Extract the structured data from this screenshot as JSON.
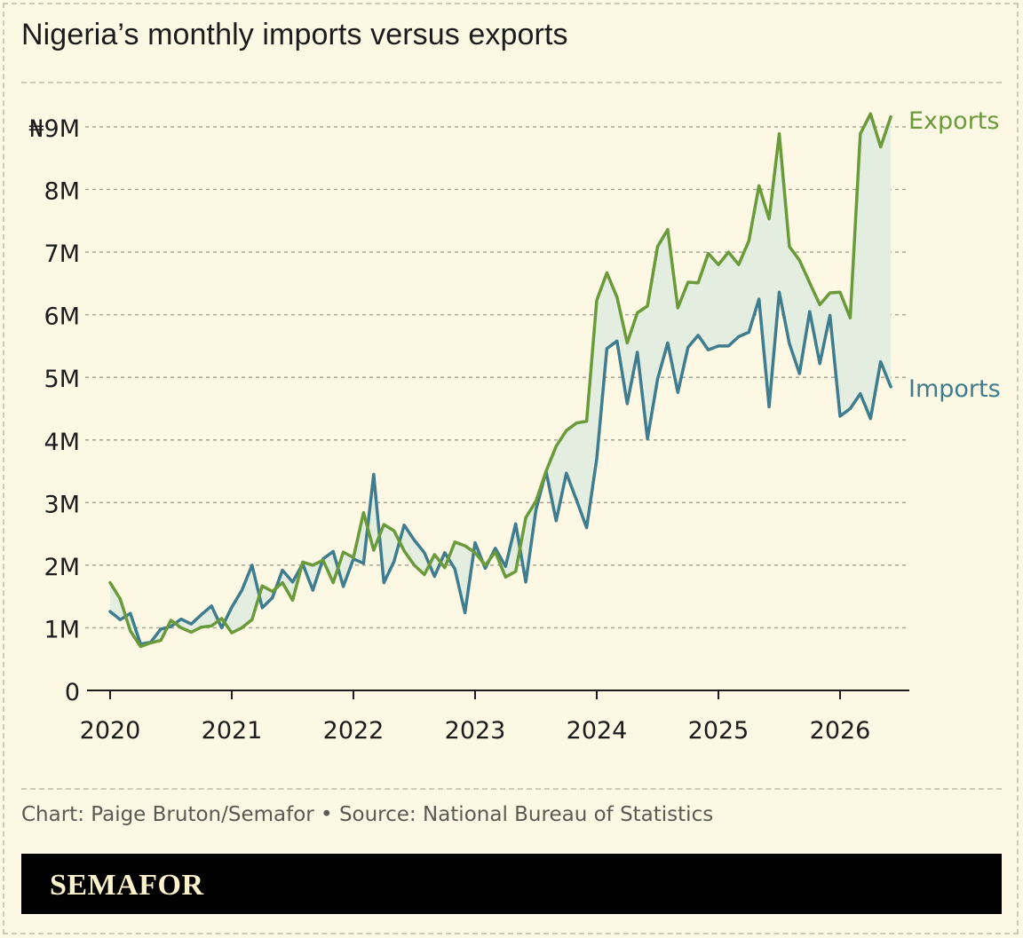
{
  "title": "Nigeria’s monthly imports versus exports",
  "credit": "Chart: Paige Bruton/Semafor • Source: National Bureau of Statistics",
  "brand": "SEMAFOR",
  "colors": {
    "background": "#fcf8e4",
    "exports": "#6a9a3a",
    "imports": "#3e7c8e",
    "fill": "#e3eee1",
    "grid": "#a8a498"
  },
  "chart_data": {
    "type": "line",
    "title": "Nigeria’s monthly imports versus exports",
    "y_unit_prefix": "₦",
    "ylim": [
      0,
      9000000
    ],
    "yticks": [
      0,
      1000000,
      2000000,
      3000000,
      4000000,
      5000000,
      6000000,
      7000000,
      8000000,
      9000000
    ],
    "ytick_labels": [
      "0",
      "1M",
      "2M",
      "3M",
      "4M",
      "5M",
      "6M",
      "7M",
      "8M",
      "₦9M"
    ],
    "xticks": [
      "2020",
      "2021",
      "2022",
      "2023",
      "2024",
      "2025",
      "2026"
    ],
    "grid": "horizontal dashed",
    "legend": "direct labels at line ends (right)",
    "x_start": "2020-01",
    "series": [
      {
        "name": "Exports",
        "values": [
          1.72,
          1.46,
          0.95,
          0.7,
          0.76,
          0.8,
          1.12,
          1.0,
          0.93,
          1.01,
          1.03,
          1.15,
          0.92,
          1.0,
          1.13,
          1.67,
          1.58,
          1.72,
          1.44,
          2.05,
          2.0,
          2.08,
          1.72,
          2.21,
          2.12,
          2.84,
          2.24,
          2.65,
          2.55,
          2.23,
          2.0,
          1.85,
          2.17,
          1.96,
          2.37,
          2.31,
          2.2,
          2.0,
          2.21,
          1.81,
          1.9,
          2.76,
          3.02,
          3.5,
          3.9,
          4.15,
          4.27,
          4.3,
          6.23,
          6.67,
          6.28,
          5.55,
          6.03,
          6.14,
          7.09,
          7.36,
          6.11,
          6.52,
          6.51,
          6.98,
          6.8,
          7.0,
          6.8,
          7.18,
          8.06,
          7.53,
          8.89,
          7.09,
          6.87,
          6.51,
          6.16,
          6.35,
          6.36,
          5.95,
          8.89,
          9.21,
          8.68,
          9.16
        ],
        "x_indices_note": "monthly from 2020-01"
      },
      {
        "name": "Imports",
        "values": [
          1.26,
          1.13,
          1.23,
          0.74,
          0.77,
          0.98,
          1.02,
          1.14,
          1.06,
          1.21,
          1.35,
          1.0,
          1.33,
          1.6,
          2.0,
          1.32,
          1.48,
          1.92,
          1.73,
          2.02,
          1.6,
          2.1,
          2.22,
          1.66,
          2.1,
          2.03,
          3.45,
          1.72,
          2.06,
          2.64,
          2.4,
          2.2,
          1.82,
          2.2,
          1.94,
          1.24,
          2.36,
          1.95,
          2.27,
          1.98,
          2.66,
          1.73,
          2.88,
          3.5,
          2.71,
          3.47,
          3.04,
          2.6,
          3.7,
          5.46,
          5.58,
          4.58,
          5.4,
          4.02,
          4.97,
          5.55,
          4.76,
          5.48,
          5.67,
          5.44,
          5.5,
          5.5,
          5.65,
          5.72,
          6.25,
          4.53,
          6.36,
          5.54,
          5.06,
          6.05,
          5.22,
          5.99,
          4.38,
          4.5,
          4.74,
          4.34,
          5.25,
          4.85
        ]
      }
    ],
    "value_scale": 1000000
  }
}
